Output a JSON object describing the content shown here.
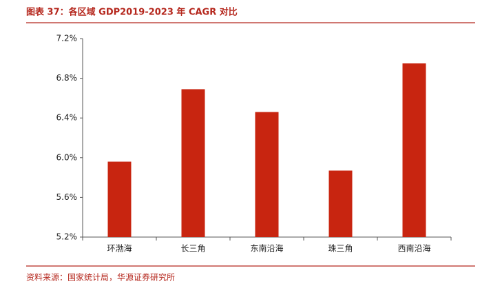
{
  "chart_data": {
    "type": "bar",
    "title": "图表 37：各区域 GDP2019-2023 年 CAGR 对比",
    "source": "资料来源：国家统计局，华源证券研究所",
    "categories": [
      "环渤海",
      "长三角",
      "东南沿海",
      "珠三角",
      "西南沿海"
    ],
    "values": [
      5.96,
      6.69,
      6.46,
      5.87,
      6.95
    ],
    "color": "#c82510",
    "ylim": [
      5.2,
      7.2
    ],
    "yticks": [
      {
        "value": 5.2,
        "label": "5.2%"
      },
      {
        "value": 5.6,
        "label": "5.6%"
      },
      {
        "value": 6.0,
        "label": "6.0%"
      },
      {
        "value": 6.4,
        "label": "6.4%"
      },
      {
        "value": 6.8,
        "label": "6.8%"
      },
      {
        "value": 7.2,
        "label": "7.2%"
      }
    ],
    "grid": false
  }
}
